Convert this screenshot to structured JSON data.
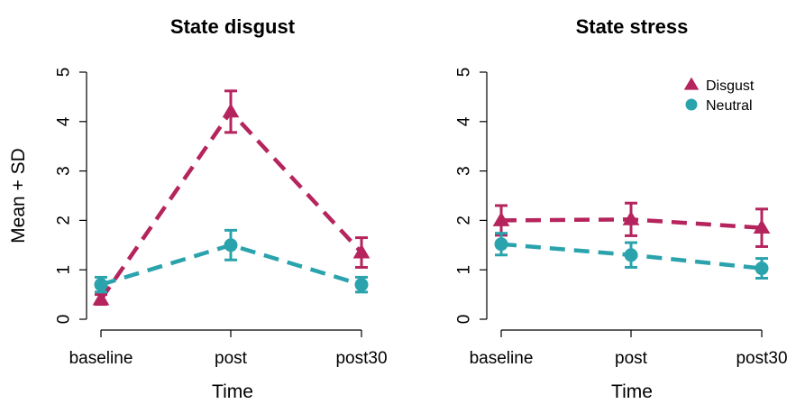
{
  "figure": {
    "ylabel": "Mean + SD"
  },
  "colors": {
    "Disgust": "#b5245c",
    "Neutral": "#2aa3ad"
  },
  "chart_data": [
    {
      "type": "line",
      "title": "State disgust",
      "xlabel": "Time",
      "ylabel": "Mean + SD",
      "categories": [
        "baseline",
        "post",
        "post30"
      ],
      "ylim": [
        0,
        5
      ],
      "yticks": [
        0,
        1,
        2,
        3,
        4,
        5
      ],
      "grid": false,
      "legend": null,
      "series": [
        {
          "name": "Disgust",
          "marker": "triangle",
          "line": "dashed",
          "values": [
            0.4,
            4.2,
            1.35
          ],
          "sd": [
            0.1,
            0.42,
            0.3
          ]
        },
        {
          "name": "Neutral",
          "marker": "circle",
          "line": "dashed",
          "values": [
            0.7,
            1.5,
            0.7
          ],
          "sd": [
            0.15,
            0.3,
            0.15
          ]
        }
      ]
    },
    {
      "type": "line",
      "title": "State stress",
      "xlabel": "Time",
      "ylabel": "",
      "categories": [
        "baseline",
        "post",
        "post30"
      ],
      "ylim": [
        0,
        5
      ],
      "yticks": [
        0,
        1,
        2,
        3,
        4,
        5
      ],
      "grid": false,
      "legend": "top-right",
      "series": [
        {
          "name": "Disgust",
          "marker": "triangle",
          "line": "dashed",
          "values": [
            2.0,
            2.02,
            1.85
          ],
          "sd": [
            0.3,
            0.33,
            0.38
          ]
        },
        {
          "name": "Neutral",
          "marker": "circle",
          "line": "dashed",
          "values": [
            1.52,
            1.3,
            1.03
          ],
          "sd": [
            0.22,
            0.25,
            0.2
          ]
        }
      ]
    }
  ]
}
